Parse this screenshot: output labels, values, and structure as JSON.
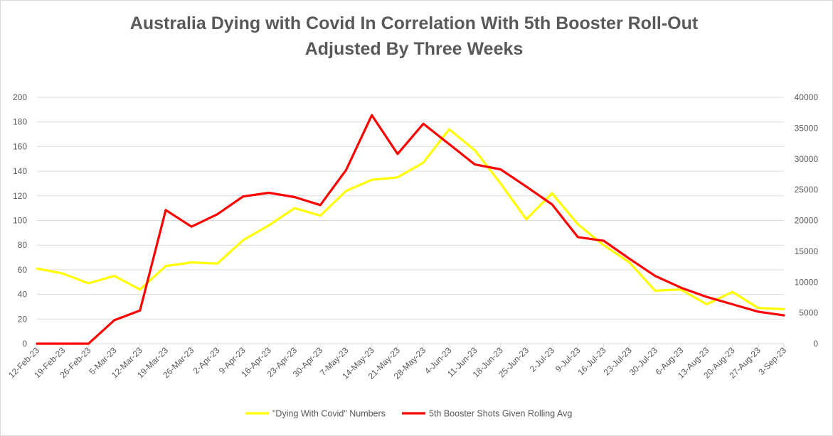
{
  "chart_data": {
    "type": "line",
    "title_lines": [
      "Australia Dying with Covid In Correlation With 5th Booster Roll-Out",
      "Adjusted By Three Weeks"
    ],
    "categories": [
      "12-Feb-23",
      "19-Feb-23",
      "26-Feb-23",
      "5-Mar-23",
      "12-Mar-23",
      "19-Mar-23",
      "26-Mar-23",
      "2-Apr-23",
      "9-Apr-23",
      "16-Apr-23",
      "23-Apr-23",
      "30-Apr-23",
      "7-May-23",
      "14-May-23",
      "21-May-23",
      "28-May-23",
      "4-Jun-23",
      "11-Jun-23",
      "18-Jun-23",
      "25-Jun-23",
      "2-Jul-23",
      "9-Jul-23",
      "16-Jul-23",
      "23-Jul-23",
      "30-Jul-23",
      "6-Aug-23",
      "13-Aug-23",
      "20-Aug-23",
      "27-Aug-23",
      "3-Sep-23"
    ],
    "series": [
      {
        "name": "\"Dying With Covid\" Numbers",
        "axis": "left",
        "color": "#ffff00",
        "values": [
          61,
          57,
          49,
          55,
          44,
          63,
          66,
          65,
          84,
          96,
          110,
          104,
          124,
          133,
          135,
          147,
          174,
          157,
          130,
          101,
          122,
          97,
          80,
          66,
          43,
          44,
          32,
          42,
          29,
          28
        ]
      },
      {
        "name": "5th Booster Shots Given Rolling Avg",
        "axis": "right",
        "color": "#ff0000",
        "values": [
          0,
          0,
          0,
          3800,
          5400,
          21700,
          19000,
          21000,
          23900,
          24500,
          23800,
          22500,
          28200,
          37100,
          30800,
          35700,
          32400,
          29100,
          28300,
          25500,
          22600,
          17300,
          16700,
          13800,
          11000,
          9100,
          7600,
          6400,
          5200,
          4600
        ]
      }
    ],
    "y_left": {
      "min": 0,
      "max": 200,
      "ticks": [
        "0",
        "20",
        "40",
        "60",
        "80",
        "100",
        "120",
        "140",
        "160",
        "180",
        "200"
      ]
    },
    "y_right": {
      "min": 0,
      "max": 40000,
      "ticks": [
        "0",
        "5000",
        "10000",
        "15000",
        "20000",
        "25000",
        "30000",
        "35000",
        "40000"
      ]
    },
    "grid": true,
    "gridline_color": "#d9d9d9",
    "legend_position": "bottom"
  }
}
